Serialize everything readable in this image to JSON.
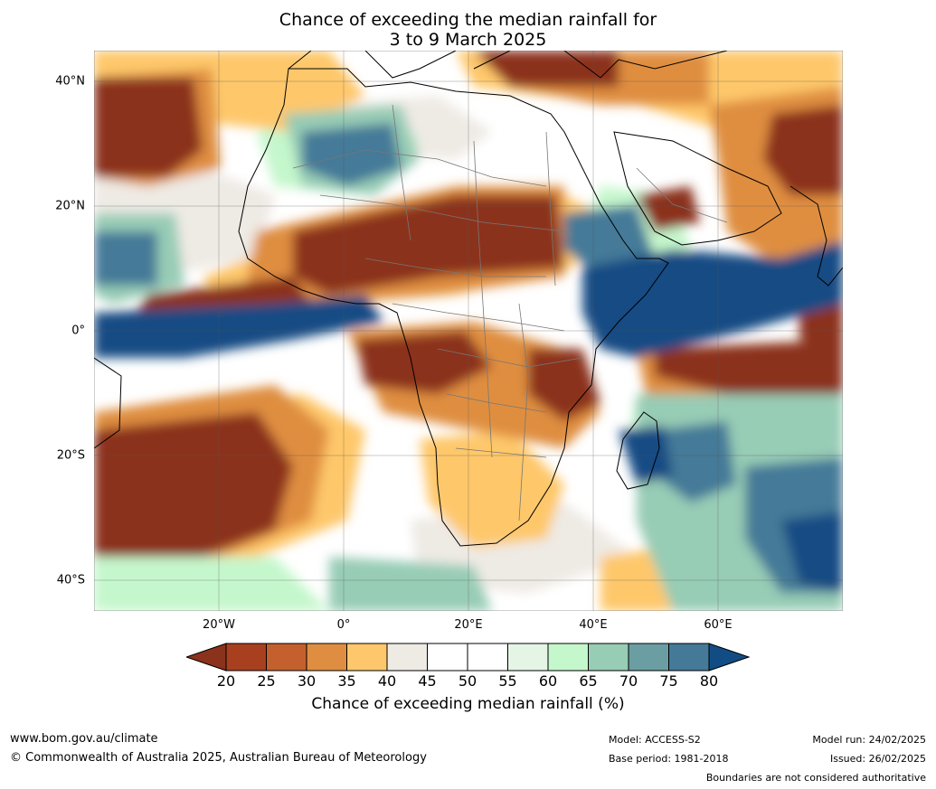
{
  "title": {
    "line1": "Chance of exceeding the median rainfall for",
    "line2": "3 to 9 March 2025"
  },
  "map": {
    "lat_labels": [
      "40°N",
      "20°N",
      "0°",
      "20°S",
      "40°S"
    ],
    "lon_labels": [
      "20°W",
      "0°",
      "20°E",
      "40°E",
      "60°E"
    ]
  },
  "colorbar": {
    "ticks": [
      "20",
      "25",
      "30",
      "35",
      "40",
      "45",
      "50",
      "55",
      "60",
      "65",
      "70",
      "75",
      "80"
    ],
    "colors": [
      "#8b321c",
      "#a8401f",
      "#c4602e",
      "#df8e41",
      "#fec76b",
      "#eeeae4",
      "#ffffff",
      "#ffffff",
      "#e5f5e5",
      "#c5f7cc",
      "#97ccb5",
      "#6a9ea3",
      "#447a98",
      "#124c84"
    ],
    "label": "Chance of exceeding median rainfall (%)"
  },
  "footer": {
    "website": "www.bom.gov.au/climate",
    "copyright": "© Commonwealth of Australia 2025, Australian Bureau of Meteorology",
    "model": "Model: ACCESS-S2",
    "base_period": "Base period: 1981-2018",
    "model_run": "Model run: 24/02/2025",
    "issued": "Issued: 26/02/2025",
    "disclaimer": "Boundaries are not considered authoritative"
  }
}
